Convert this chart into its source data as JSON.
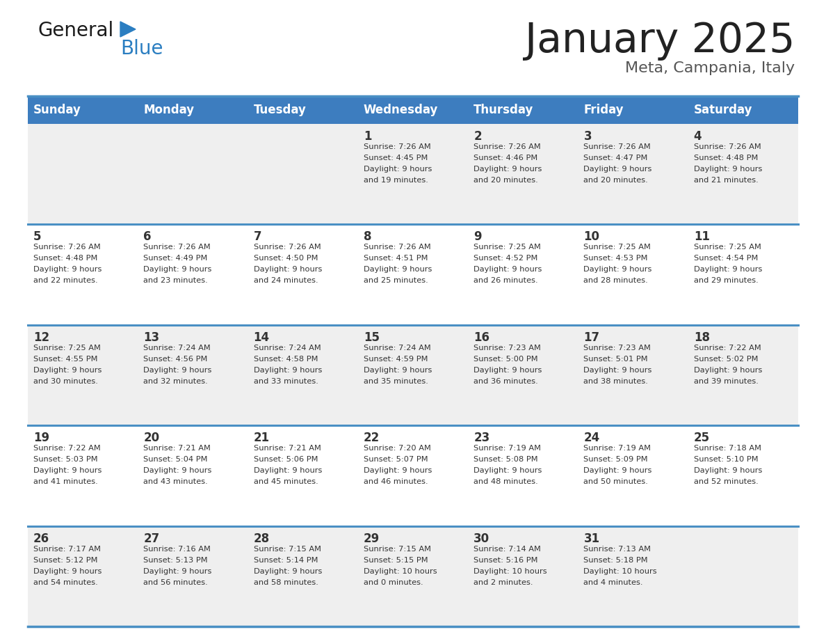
{
  "title": "January 2025",
  "subtitle": "Meta, Campania, Italy",
  "header_bg_color": "#3d7dbf",
  "header_text_color": "#ffffff",
  "day_names": [
    "Sunday",
    "Monday",
    "Tuesday",
    "Wednesday",
    "Thursday",
    "Friday",
    "Saturday"
  ],
  "row_bg_odd": "#efefef",
  "row_bg_even": "#ffffff",
  "cell_text_color": "#333333",
  "border_color": "#4a90c4",
  "title_color": "#222222",
  "subtitle_color": "#555555",
  "days": [
    {
      "day": 1,
      "col": 3,
      "row": 0,
      "sunrise": "7:26 AM",
      "sunset": "4:45 PM",
      "daylight": "9 hours and 19 minutes."
    },
    {
      "day": 2,
      "col": 4,
      "row": 0,
      "sunrise": "7:26 AM",
      "sunset": "4:46 PM",
      "daylight": "9 hours and 20 minutes."
    },
    {
      "day": 3,
      "col": 5,
      "row": 0,
      "sunrise": "7:26 AM",
      "sunset": "4:47 PM",
      "daylight": "9 hours and 20 minutes."
    },
    {
      "day": 4,
      "col": 6,
      "row": 0,
      "sunrise": "7:26 AM",
      "sunset": "4:48 PM",
      "daylight": "9 hours and 21 minutes."
    },
    {
      "day": 5,
      "col": 0,
      "row": 1,
      "sunrise": "7:26 AM",
      "sunset": "4:48 PM",
      "daylight": "9 hours and 22 minutes."
    },
    {
      "day": 6,
      "col": 1,
      "row": 1,
      "sunrise": "7:26 AM",
      "sunset": "4:49 PM",
      "daylight": "9 hours and 23 minutes."
    },
    {
      "day": 7,
      "col": 2,
      "row": 1,
      "sunrise": "7:26 AM",
      "sunset": "4:50 PM",
      "daylight": "9 hours and 24 minutes."
    },
    {
      "day": 8,
      "col": 3,
      "row": 1,
      "sunrise": "7:26 AM",
      "sunset": "4:51 PM",
      "daylight": "9 hours and 25 minutes."
    },
    {
      "day": 9,
      "col": 4,
      "row": 1,
      "sunrise": "7:25 AM",
      "sunset": "4:52 PM",
      "daylight": "9 hours and 26 minutes."
    },
    {
      "day": 10,
      "col": 5,
      "row": 1,
      "sunrise": "7:25 AM",
      "sunset": "4:53 PM",
      "daylight": "9 hours and 28 minutes."
    },
    {
      "day": 11,
      "col": 6,
      "row": 1,
      "sunrise": "7:25 AM",
      "sunset": "4:54 PM",
      "daylight": "9 hours and 29 minutes."
    },
    {
      "day": 12,
      "col": 0,
      "row": 2,
      "sunrise": "7:25 AM",
      "sunset": "4:55 PM",
      "daylight": "9 hours and 30 minutes."
    },
    {
      "day": 13,
      "col": 1,
      "row": 2,
      "sunrise": "7:24 AM",
      "sunset": "4:56 PM",
      "daylight": "9 hours and 32 minutes."
    },
    {
      "day": 14,
      "col": 2,
      "row": 2,
      "sunrise": "7:24 AM",
      "sunset": "4:58 PM",
      "daylight": "9 hours and 33 minutes."
    },
    {
      "day": 15,
      "col": 3,
      "row": 2,
      "sunrise": "7:24 AM",
      "sunset": "4:59 PM",
      "daylight": "9 hours and 35 minutes."
    },
    {
      "day": 16,
      "col": 4,
      "row": 2,
      "sunrise": "7:23 AM",
      "sunset": "5:00 PM",
      "daylight": "9 hours and 36 minutes."
    },
    {
      "day": 17,
      "col": 5,
      "row": 2,
      "sunrise": "7:23 AM",
      "sunset": "5:01 PM",
      "daylight": "9 hours and 38 minutes."
    },
    {
      "day": 18,
      "col": 6,
      "row": 2,
      "sunrise": "7:22 AM",
      "sunset": "5:02 PM",
      "daylight": "9 hours and 39 minutes."
    },
    {
      "day": 19,
      "col": 0,
      "row": 3,
      "sunrise": "7:22 AM",
      "sunset": "5:03 PM",
      "daylight": "9 hours and 41 minutes."
    },
    {
      "day": 20,
      "col": 1,
      "row": 3,
      "sunrise": "7:21 AM",
      "sunset": "5:04 PM",
      "daylight": "9 hours and 43 minutes."
    },
    {
      "day": 21,
      "col": 2,
      "row": 3,
      "sunrise": "7:21 AM",
      "sunset": "5:06 PM",
      "daylight": "9 hours and 45 minutes."
    },
    {
      "day": 22,
      "col": 3,
      "row": 3,
      "sunrise": "7:20 AM",
      "sunset": "5:07 PM",
      "daylight": "9 hours and 46 minutes."
    },
    {
      "day": 23,
      "col": 4,
      "row": 3,
      "sunrise": "7:19 AM",
      "sunset": "5:08 PM",
      "daylight": "9 hours and 48 minutes."
    },
    {
      "day": 24,
      "col": 5,
      "row": 3,
      "sunrise": "7:19 AM",
      "sunset": "5:09 PM",
      "daylight": "9 hours and 50 minutes."
    },
    {
      "day": 25,
      "col": 6,
      "row": 3,
      "sunrise": "7:18 AM",
      "sunset": "5:10 PM",
      "daylight": "9 hours and 52 minutes."
    },
    {
      "day": 26,
      "col": 0,
      "row": 4,
      "sunrise": "7:17 AM",
      "sunset": "5:12 PM",
      "daylight": "9 hours and 54 minutes."
    },
    {
      "day": 27,
      "col": 1,
      "row": 4,
      "sunrise": "7:16 AM",
      "sunset": "5:13 PM",
      "daylight": "9 hours and 56 minutes."
    },
    {
      "day": 28,
      "col": 2,
      "row": 4,
      "sunrise": "7:15 AM",
      "sunset": "5:14 PM",
      "daylight": "9 hours and 58 minutes."
    },
    {
      "day": 29,
      "col": 3,
      "row": 4,
      "sunrise": "7:15 AM",
      "sunset": "5:15 PM",
      "daylight": "10 hours and 0 minutes."
    },
    {
      "day": 30,
      "col": 4,
      "row": 4,
      "sunrise": "7:14 AM",
      "sunset": "5:16 PM",
      "daylight": "10 hours and 2 minutes."
    },
    {
      "day": 31,
      "col": 5,
      "row": 4,
      "sunrise": "7:13 AM",
      "sunset": "5:18 PM",
      "daylight": "10 hours and 4 minutes."
    }
  ],
  "logo_text_general": "General",
  "logo_text_blue": "Blue",
  "logo_color_general": "#1a1a1a",
  "logo_color_blue": "#2b7ec1",
  "logo_triangle_color": "#2b7ec1",
  "fig_width": 11.88,
  "fig_height": 9.18,
  "dpi": 100
}
